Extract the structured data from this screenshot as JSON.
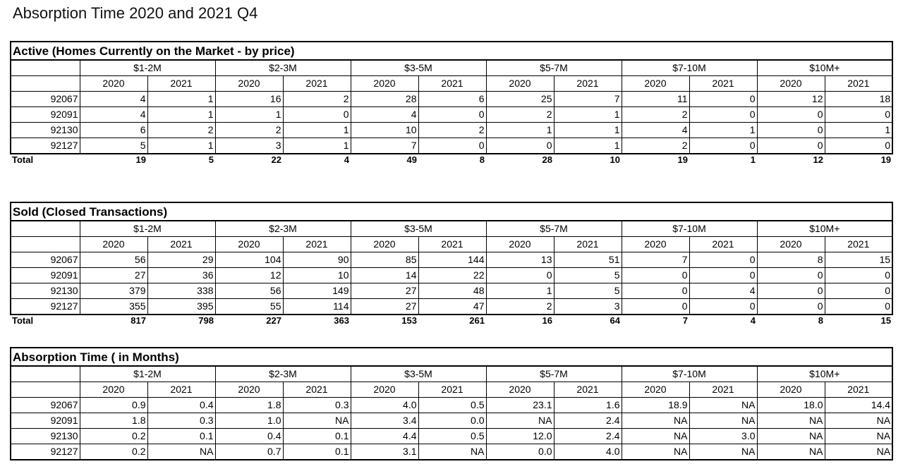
{
  "title": "Absorption Time 2020 and 2021 Q4",
  "tables": [
    {
      "title": "Active (Homes Currently on the Market - by price)",
      "price_ranges": [
        "$1-2M",
        "$2-3M",
        "$3-5M",
        "$5-7M",
        "$7-10M",
        "$10M+"
      ],
      "years": [
        "2020",
        "2021",
        "2020",
        "2021",
        "2020",
        "2021",
        "2020",
        "2021",
        "2020",
        "2021",
        "2020",
        "2021"
      ],
      "rows": [
        {
          "zip": "92067",
          "cells": [
            "4",
            "1",
            "16",
            "2",
            "28",
            "6",
            "25",
            "7",
            "11",
            "0",
            "12",
            "18"
          ]
        },
        {
          "zip": "92091",
          "cells": [
            "4",
            "1",
            "1",
            "0",
            "4",
            "0",
            "2",
            "1",
            "2",
            "0",
            "0",
            "0"
          ]
        },
        {
          "zip": "92130",
          "cells": [
            "6",
            "2",
            "2",
            "1",
            "10",
            "2",
            "1",
            "1",
            "4",
            "1",
            "0",
            "1"
          ]
        },
        {
          "zip": "92127",
          "cells": [
            "5",
            "1",
            "3",
            "1",
            "7",
            "0",
            "0",
            "1",
            "2",
            "0",
            "0",
            "0"
          ]
        }
      ],
      "total": {
        "label": "Total",
        "cells": [
          "19",
          "5",
          "22",
          "4",
          "49",
          "8",
          "28",
          "10",
          "19",
          "1",
          "12",
          "19"
        ]
      }
    },
    {
      "title": "Sold (Closed Transactions)",
      "price_ranges": [
        "$1-2M",
        "$2-3M",
        "$3-5M",
        "$5-7M",
        "$7-10M",
        "$10M+"
      ],
      "years": [
        "2020",
        "2021",
        "2020",
        "2021",
        "2020",
        "2021",
        "2020",
        "2021",
        "2020",
        "2021",
        "2020",
        "2021"
      ],
      "rows": [
        {
          "zip": "92067",
          "cells": [
            "56",
            "29",
            "104",
            "90",
            "85",
            "144",
            "13",
            "51",
            "7",
            "0",
            "8",
            "15"
          ]
        },
        {
          "zip": "92091",
          "cells": [
            "27",
            "36",
            "12",
            "10",
            "14",
            "22",
            "0",
            "5",
            "0",
            "0",
            "0",
            "0"
          ]
        },
        {
          "zip": "92130",
          "cells": [
            "379",
            "338",
            "56",
            "149",
            "27",
            "48",
            "1",
            "5",
            "0",
            "4",
            "0",
            "0"
          ]
        },
        {
          "zip": "92127",
          "cells": [
            "355",
            "395",
            "55",
            "114",
            "27",
            "47",
            "2",
            "3",
            "0",
            "0",
            "0",
            "0"
          ]
        }
      ],
      "total": {
        "label": "Total",
        "cells": [
          "817",
          "798",
          "227",
          "363",
          "153",
          "261",
          "16",
          "64",
          "7",
          "4",
          "8",
          "15"
        ]
      }
    },
    {
      "title": "Absorption Time ( in Months)",
      "price_ranges": [
        "$1-2M",
        "$2-3M",
        "$3-5M",
        "$5-7M",
        "$7-10M",
        "$10M+"
      ],
      "years": [
        "2020",
        "2021",
        "2020",
        "2021",
        "2020",
        "2021",
        "2020",
        "2021",
        "2020",
        "2021",
        "2020",
        "2021"
      ],
      "rows": [
        {
          "zip": "92067",
          "cells": [
            "0.9",
            "0.4",
            "1.8",
            "0.3",
            "4.0",
            "0.5",
            "23.1",
            "1.6",
            "18.9",
            "NA",
            "18.0",
            "14.4"
          ]
        },
        {
          "zip": "92091",
          "cells": [
            "1.8",
            "0.3",
            "1.0",
            "NA",
            "3.4",
            "0.0",
            "NA",
            "2.4",
            "NA",
            "NA",
            "NA",
            "NA"
          ]
        },
        {
          "zip": "92130",
          "cells": [
            "0.2",
            "0.1",
            "0.4",
            "0.1",
            "4.4",
            "0.5",
            "12.0",
            "2.4",
            "NA",
            "3.0",
            "NA",
            "NA"
          ]
        },
        {
          "zip": "92127",
          "cells": [
            "0.2",
            "NA",
            "0.7",
            "0.1",
            "3.1",
            "NA",
            "0.0",
            "4.0",
            "NA",
            "NA",
            "NA",
            "NA"
          ]
        }
      ]
    }
  ]
}
